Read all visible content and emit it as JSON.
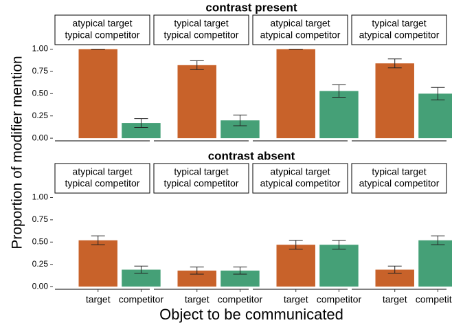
{
  "chart_data": {
    "type": "bar",
    "xlabel": "Object to be communicated",
    "ylabel": "Proportion of modifier mention",
    "categories": [
      "target",
      "competitor"
    ],
    "colors": [
      "#c8622a",
      "#45a077"
    ],
    "ylim": [
      -0.03,
      1.05
    ],
    "yticks": [
      {
        "value": 0,
        "label": "0.00"
      },
      {
        "value": 0.25,
        "label": "0.25"
      },
      {
        "value": 0.5,
        "label": "0.50"
      },
      {
        "value": 0.75,
        "label": "0.75"
      },
      {
        "value": 1,
        "label": "1.00"
      }
    ],
    "rows": [
      {
        "title": "contrast present",
        "panels": [
          {
            "title": [
              "atypical target",
              "typical competitor"
            ],
            "values": [
              1.0,
              0.17
            ],
            "errors": [
              0,
              0.05
            ]
          },
          {
            "title": [
              "typical target",
              "typical competitor"
            ],
            "values": [
              0.82,
              0.2
            ],
            "errors": [
              0.05,
              0.06
            ]
          },
          {
            "title": [
              "atypical target",
              "atypical competitor"
            ],
            "values": [
              1.0,
              0.53
            ],
            "errors": [
              0,
              0.07
            ]
          },
          {
            "title": [
              "typical target",
              "atypical competitor"
            ],
            "values": [
              0.84,
              0.5
            ],
            "errors": [
              0.05,
              0.07
            ]
          }
        ]
      },
      {
        "title": "contrast absent",
        "panels": [
          {
            "title": [
              "atypical target",
              "typical competitor"
            ],
            "values": [
              0.52,
              0.19
            ],
            "errors": [
              0.05,
              0.04
            ]
          },
          {
            "title": [
              "typical target",
              "typical competitor"
            ],
            "values": [
              0.18,
              0.18
            ],
            "errors": [
              0.04,
              0.04
            ]
          },
          {
            "title": [
              "atypical target",
              "atypical competitor"
            ],
            "values": [
              0.47,
              0.47
            ],
            "errors": [
              0.05,
              0.05
            ]
          },
          {
            "title": [
              "typical target",
              "atypical competitor"
            ],
            "values": [
              0.19,
              0.52
            ],
            "errors": [
              0.04,
              0.05
            ]
          }
        ]
      }
    ]
  }
}
